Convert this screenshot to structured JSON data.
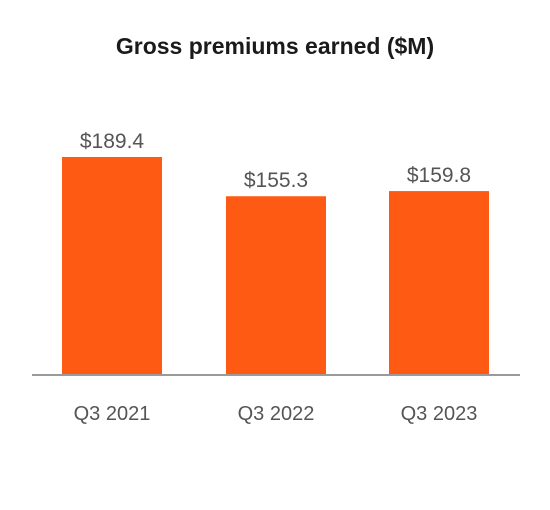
{
  "chart_data": {
    "type": "bar",
    "title": "Gross premiums earned ($M)",
    "categories": [
      "Q3 2021",
      "Q3 2022",
      "Q3 2023"
    ],
    "values": [
      189.4,
      155.3,
      159.8
    ],
    "value_labels": [
      "$189.4",
      "$155.3",
      "$159.8"
    ],
    "xlabel": "",
    "ylabel": "",
    "ylim": [
      0,
      200
    ],
    "grid": false,
    "legend": "none",
    "bar_color": "#FF5A14",
    "axis_color": "#9a9a9a",
    "label_color": "#555555"
  }
}
